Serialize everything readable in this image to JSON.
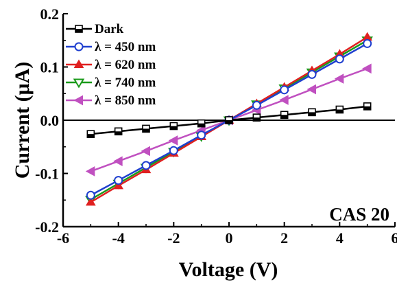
{
  "chart_data": {
    "type": "line",
    "xlabel": "Voltage (V)",
    "ylabel": "Current (μA)",
    "xlim": [
      -6,
      6
    ],
    "ylim": [
      -0.2,
      0.2
    ],
    "x_ticks": [
      -6,
      -4,
      -2,
      0,
      2,
      4,
      6
    ],
    "x_tick_labels": [
      "-6",
      "-4",
      "-2",
      "0",
      "2",
      "4",
      "6"
    ],
    "y_ticks": [
      -0.2,
      -0.1,
      0.0,
      0.1,
      0.2
    ],
    "y_tick_labels": [
      "-0.2",
      "-0.1",
      "0.0",
      "0.1",
      "0.2"
    ],
    "annotation": "CAS 20",
    "legend_position": "top-left",
    "grid": false,
    "x": [
      -5,
      -4,
      -3,
      -2,
      -1,
      0,
      1,
      2,
      3,
      4,
      5
    ],
    "series": [
      {
        "name": "Dark",
        "color": "#000000",
        "marker": "square-half",
        "values": [
          -0.026,
          -0.021,
          -0.016,
          -0.011,
          -0.006,
          0.0,
          0.005,
          0.01,
          0.015,
          0.02,
          0.026
        ]
      },
      {
        "name": "λ = 450 nm",
        "color": "#1f3fcf",
        "marker": "circle-open",
        "values": [
          -0.141,
          -0.113,
          -0.085,
          -0.057,
          -0.028,
          0.0,
          0.028,
          0.057,
          0.086,
          0.115,
          0.144
        ]
      },
      {
        "name": "λ = 620 nm",
        "color": "#e02020",
        "marker": "triangle-up",
        "values": [
          -0.154,
          -0.123,
          -0.093,
          -0.062,
          -0.031,
          0.0,
          0.031,
          0.062,
          0.093,
          0.124,
          0.156
        ]
      },
      {
        "name": "λ = 740 nm",
        "color": "#1a9a1a",
        "marker": "triangle-down-open",
        "values": [
          -0.149,
          -0.119,
          -0.089,
          -0.059,
          -0.03,
          0.0,
          0.03,
          0.06,
          0.09,
          0.12,
          0.15
        ]
      },
      {
        "name": "λ = 850 nm",
        "color": "#c050c0",
        "marker": "triangle-left",
        "values": [
          -0.096,
          -0.077,
          -0.058,
          -0.038,
          -0.019,
          0.0,
          0.019,
          0.038,
          0.058,
          0.078,
          0.097
        ]
      }
    ]
  }
}
